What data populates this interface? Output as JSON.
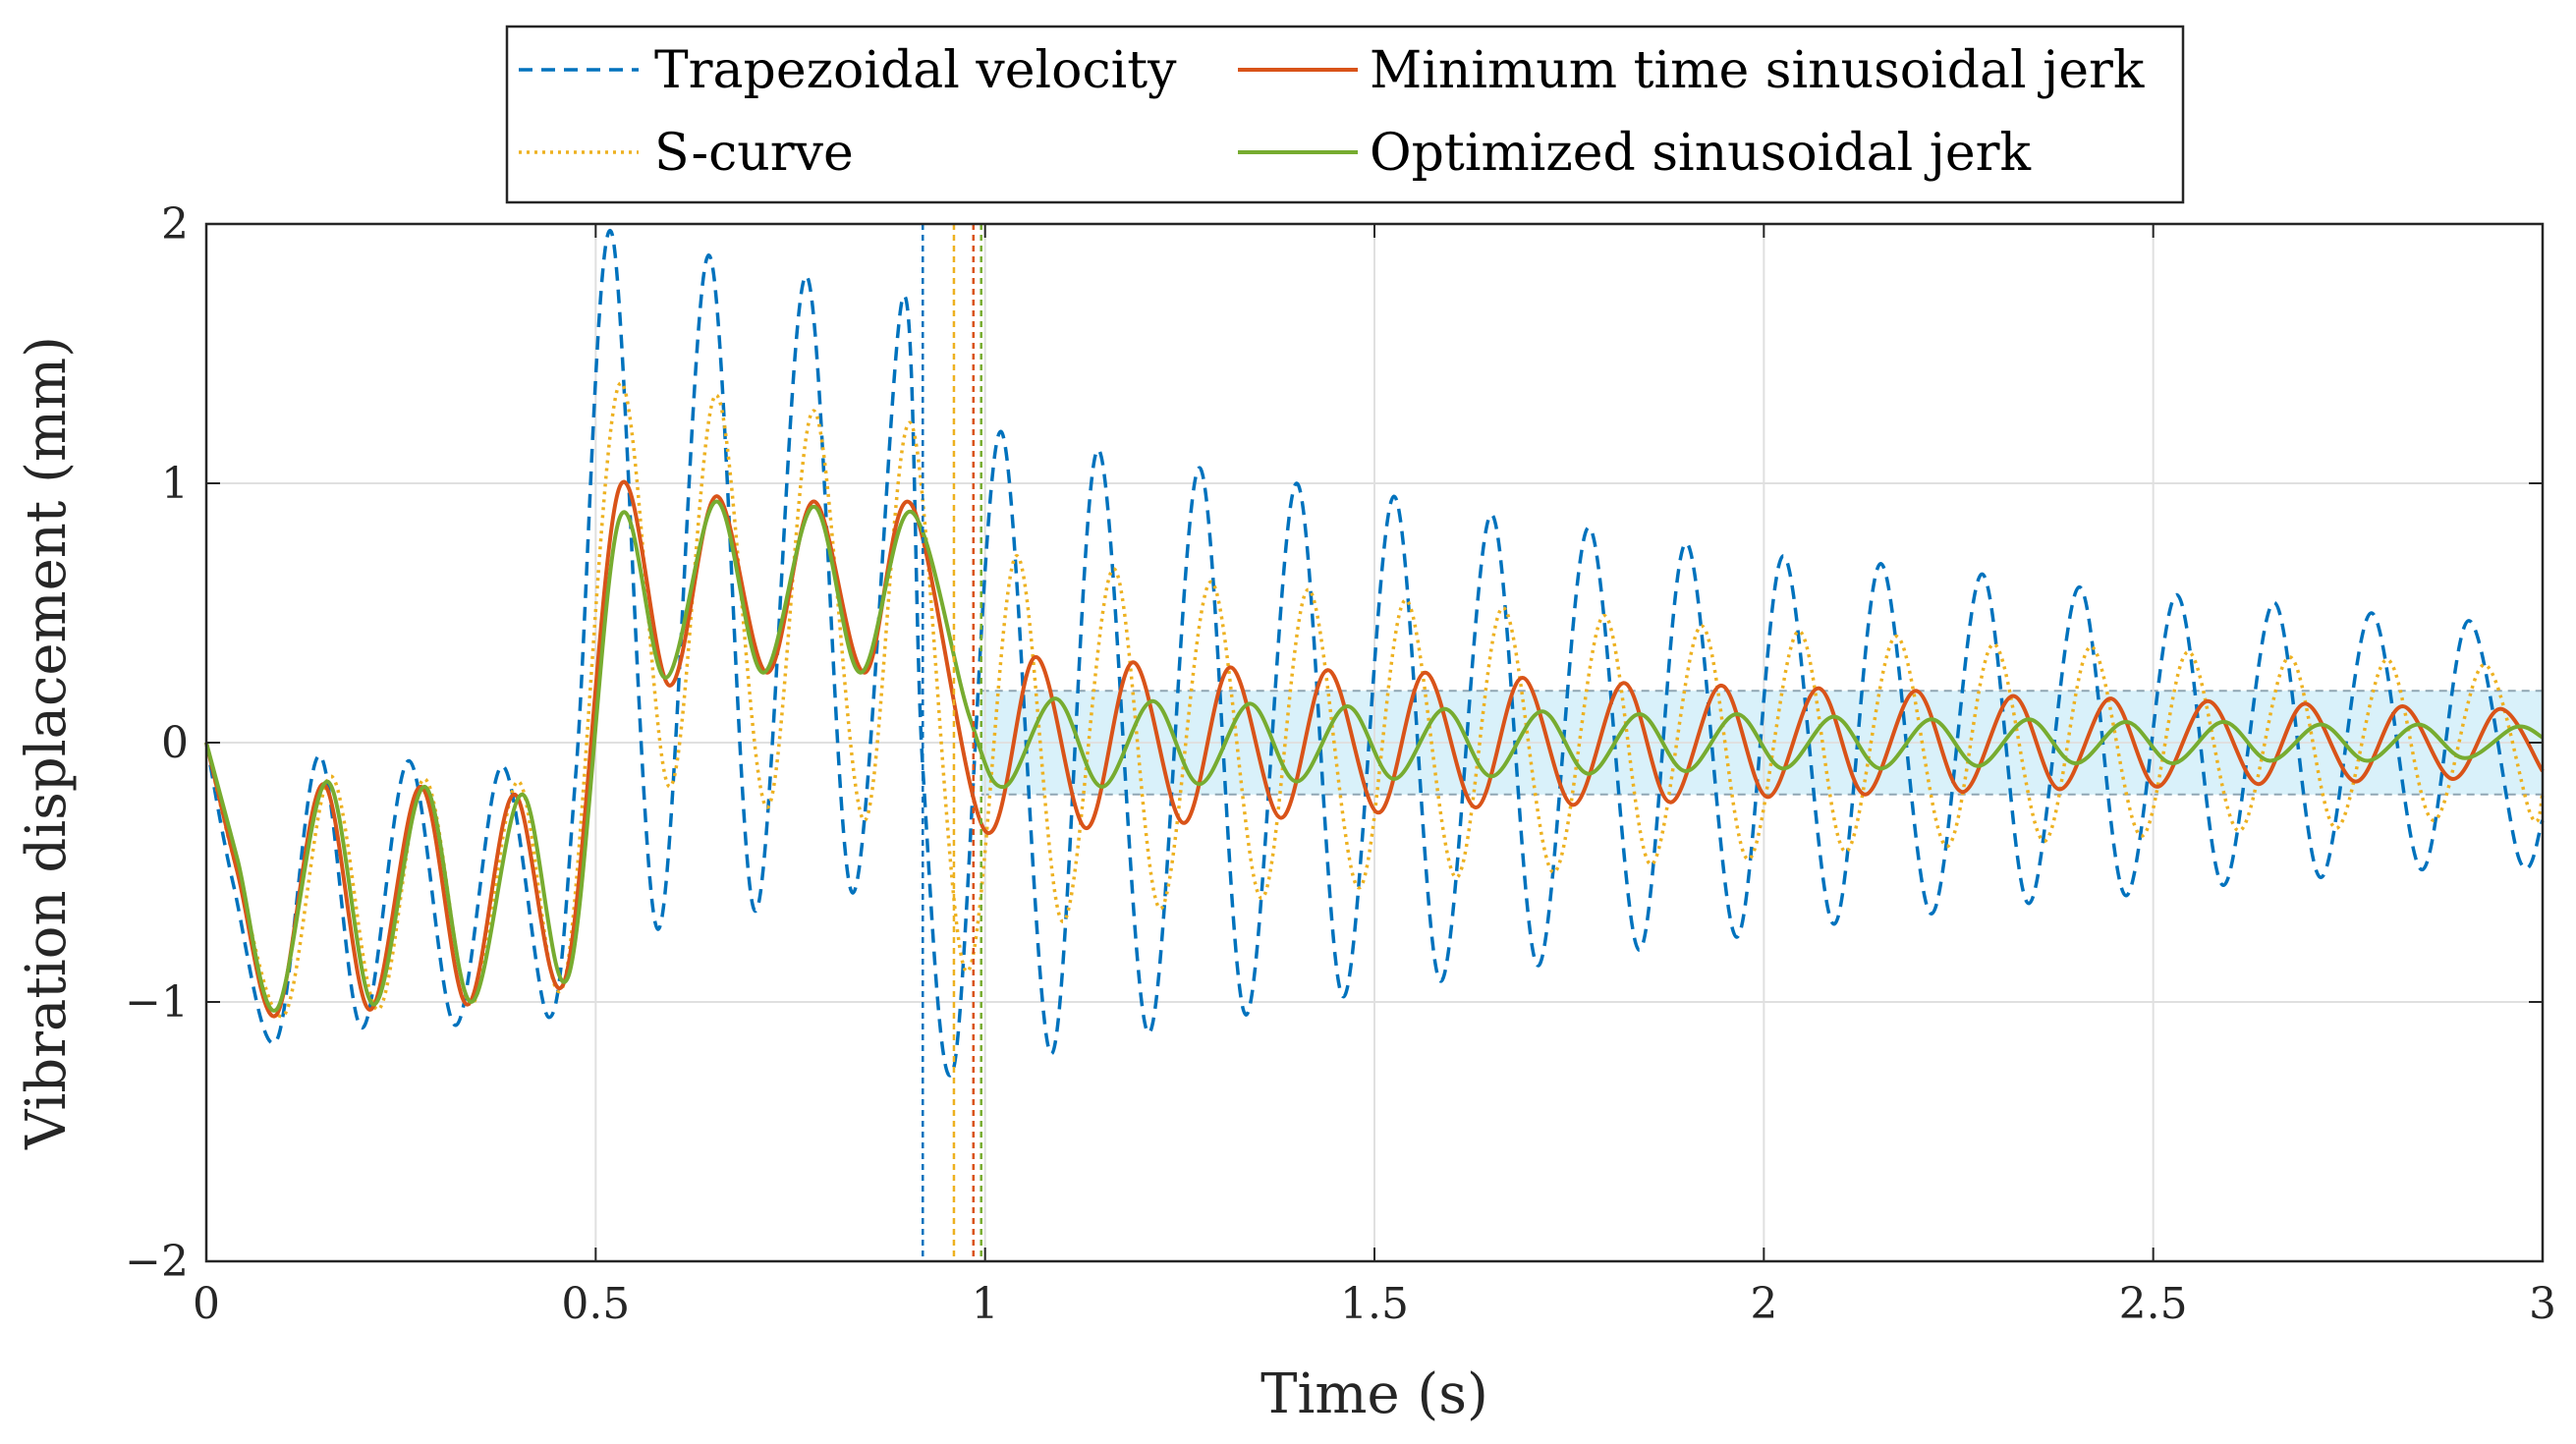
{
  "chart_data": {
    "type": "line",
    "title": "",
    "xlabel": "Time (s)",
    "ylabel": "Vibration displacement (mm)",
    "xlim": [
      0,
      3
    ],
    "ylim": [
      -2,
      2
    ],
    "x_ticks": [
      0,
      0.5,
      1,
      1.5,
      2,
      2.5,
      3
    ],
    "x_tick_labels": [
      "0",
      "0.5",
      "1",
      "1.5",
      "2",
      "2.5",
      "3"
    ],
    "y_ticks": [
      -2,
      -1,
      0,
      1,
      2
    ],
    "y_tick_labels": [
      "−2",
      "−1",
      "0",
      "1",
      "2"
    ],
    "grid": true,
    "legend_position": "top-outside",
    "tolerance_band": {
      "ymin": -0.2,
      "ymax": 0.2,
      "x_start": 0.995,
      "color": "#d9f1fa",
      "line_color": "#8fa6b3"
    },
    "series": [
      {
        "name": "Trapezoidal velocity",
        "color": "#0072BD",
        "style": "dashed",
        "end_time": 0.92,
        "x": [
          0,
          0.035,
          0.09,
          0.145,
          0.2,
          0.26,
          0.32,
          0.38,
          0.44,
          0.475,
          0.52,
          0.58,
          0.645,
          0.705,
          0.77,
          0.83,
          0.895,
          0.92,
          0.96,
          1.02,
          1.085,
          1.145,
          1.21,
          1.275,
          1.335,
          1.4,
          1.46,
          1.525,
          1.585,
          1.65,
          1.71,
          1.775,
          1.84,
          1.9,
          1.965,
          2.025,
          2.09,
          2.15,
          2.215,
          2.28,
          2.34,
          2.405,
          2.465,
          2.53,
          2.59,
          2.655,
          2.715,
          2.78,
          2.845,
          2.905,
          2.97,
          3.0
        ],
        "y": [
          0,
          -0.55,
          -1.15,
          -0.05,
          -1.1,
          -0.07,
          -1.09,
          -0.09,
          -1.06,
          -0.1,
          1.97,
          -0.72,
          1.88,
          -0.65,
          1.8,
          -0.58,
          1.72,
          -0.1,
          -1.25,
          1.2,
          -1.2,
          1.13,
          -1.12,
          1.06,
          -1.05,
          1.0,
          -0.98,
          0.95,
          -0.92,
          0.88,
          -0.86,
          0.83,
          -0.8,
          0.77,
          -0.75,
          0.72,
          -0.7,
          0.69,
          -0.66,
          0.65,
          -0.62,
          0.6,
          -0.59,
          0.57,
          -0.55,
          0.54,
          -0.52,
          0.5,
          -0.49,
          0.47,
          -0.45,
          -0.3
        ]
      },
      {
        "name": "S-curve",
        "color": "#EDB120",
        "style": "dotted",
        "end_time": 0.96,
        "x": [
          0,
          0.04,
          0.1,
          0.16,
          0.22,
          0.28,
          0.34,
          0.4,
          0.46,
          0.53,
          0.595,
          0.655,
          0.72,
          0.78,
          0.845,
          0.905,
          0.975,
          1.04,
          1.1,
          1.165,
          1.225,
          1.29,
          1.355,
          1.415,
          1.48,
          1.54,
          1.605,
          1.665,
          1.73,
          1.795,
          1.855,
          1.92,
          1.98,
          2.045,
          2.105,
          2.17,
          2.235,
          2.295,
          2.36,
          2.42,
          2.485,
          2.545,
          2.61,
          2.675,
          2.735,
          2.8,
          2.86,
          2.925,
          2.985,
          3.0
        ],
        "y": [
          0,
          -0.5,
          -1.05,
          -0.13,
          -1.03,
          -0.14,
          -1.01,
          -0.15,
          -0.92,
          1.38,
          -0.17,
          1.34,
          -0.25,
          1.28,
          -0.3,
          1.23,
          -0.88,
          0.72,
          -0.69,
          0.67,
          -0.64,
          0.62,
          -0.6,
          0.59,
          -0.56,
          0.55,
          -0.52,
          0.52,
          -0.5,
          0.49,
          -0.47,
          0.45,
          -0.45,
          0.43,
          -0.42,
          0.41,
          -0.4,
          0.38,
          -0.38,
          0.37,
          -0.36,
          0.35,
          -0.34,
          0.33,
          -0.33,
          0.32,
          -0.3,
          0.3,
          -0.28,
          -0.2
        ]
      },
      {
        "name": "Minimum time sinusoidal jerk",
        "color": "#D95319",
        "style": "solid",
        "end_time": 0.985,
        "x": [
          0,
          0.04,
          0.09,
          0.15,
          0.21,
          0.275,
          0.335,
          0.395,
          0.46,
          0.53,
          0.595,
          0.655,
          0.72,
          0.78,
          0.845,
          0.905,
          1.0,
          1.065,
          1.13,
          1.19,
          1.255,
          1.315,
          1.38,
          1.44,
          1.505,
          1.565,
          1.63,
          1.69,
          1.755,
          1.82,
          1.88,
          1.945,
          2.005,
          2.07,
          2.13,
          2.195,
          2.255,
          2.32,
          2.38,
          2.445,
          2.505,
          2.57,
          2.635,
          2.695,
          2.76,
          2.82,
          2.885,
          2.945,
          3.0
        ],
        "y": [
          0,
          -0.5,
          -1.05,
          -0.16,
          -1.03,
          -0.17,
          -1.01,
          -0.2,
          -0.92,
          0.98,
          0.22,
          0.95,
          0.27,
          0.93,
          0.27,
          0.92,
          -0.34,
          0.33,
          -0.33,
          0.31,
          -0.31,
          0.29,
          -0.29,
          0.28,
          -0.27,
          0.27,
          -0.25,
          0.25,
          -0.24,
          0.23,
          -0.23,
          0.22,
          -0.21,
          0.21,
          -0.2,
          0.2,
          -0.19,
          0.18,
          -0.18,
          0.17,
          -0.17,
          0.16,
          -0.16,
          0.15,
          -0.15,
          0.14,
          -0.14,
          0.13,
          -0.11
        ]
      },
      {
        "name": "Optimized sinusoidal jerk",
        "color": "#77AC30",
        "style": "solid",
        "end_time": 0.995,
        "x": [
          0,
          0.04,
          0.09,
          0.155,
          0.215,
          0.28,
          0.34,
          0.405,
          0.465,
          0.53,
          0.59,
          0.655,
          0.715,
          0.78,
          0.84,
          0.905,
          0.98,
          1.025,
          1.09,
          1.15,
          1.215,
          1.275,
          1.34,
          1.4,
          1.465,
          1.525,
          1.59,
          1.65,
          1.715,
          1.775,
          1.84,
          1.9,
          1.965,
          2.025,
          2.09,
          2.15,
          2.215,
          2.275,
          2.34,
          2.4,
          2.465,
          2.525,
          2.59,
          2.65,
          2.715,
          2.775,
          2.84,
          2.9,
          2.965,
          3.0
        ],
        "y": [
          0,
          -0.45,
          -1.03,
          -0.15,
          -1.01,
          -0.17,
          -1.0,
          -0.2,
          -0.9,
          0.86,
          0.25,
          0.93,
          0.27,
          0.91,
          0.27,
          0.89,
          0.1,
          -0.17,
          0.17,
          -0.17,
          0.16,
          -0.16,
          0.15,
          -0.15,
          0.14,
          -0.14,
          0.13,
          -0.13,
          0.12,
          -0.12,
          0.11,
          -0.11,
          0.11,
          -0.1,
          0.1,
          -0.1,
          0.09,
          -0.09,
          0.09,
          -0.08,
          0.08,
          -0.08,
          0.08,
          -0.07,
          0.07,
          -0.07,
          0.07,
          -0.06,
          0.06,
          0.02
        ]
      }
    ]
  }
}
